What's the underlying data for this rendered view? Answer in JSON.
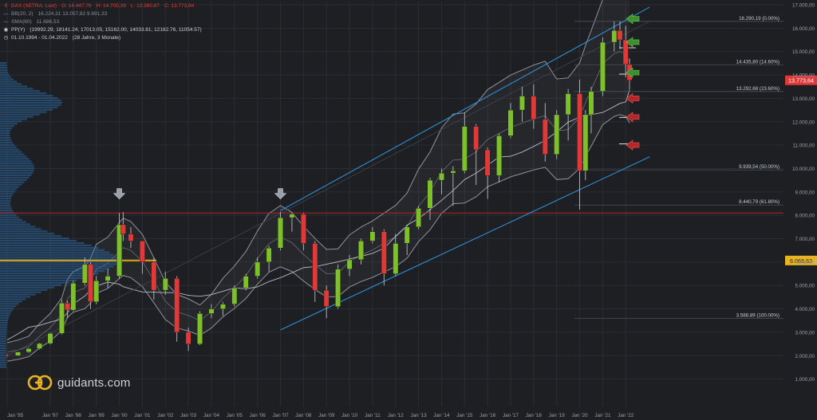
{
  "legend": {
    "instrument": {
      "name": "DAX (XETRA, Last)",
      "open": "O: 14.447,76",
      "high": "H: 14.705,39",
      "low": "L: 13.380,67",
      "close": "C: 13.773,64"
    },
    "bb": {
      "label": "BB(20, 2)",
      "values": "16.224,31  13.057,82  9.891,33"
    },
    "sma": {
      "label": "SMA(60)",
      "values": "11.686,53"
    },
    "pp": {
      "label": "PP(Y)",
      "values": "(19992.29, 18141.24, 17013.05, 15162.00, 14033.81, 12182.76, 11054.57)"
    },
    "range": {
      "label": "01.10.1994 - 01.04.2022",
      "duration": "(28 Jahre, 3 Monate)"
    }
  },
  "brand": {
    "name": "guidants.com"
  },
  "colors": {
    "background": "#1d1f23",
    "up": "#7ec02a",
    "down": "#e0393a",
    "channel": "#2f8fd6",
    "bands": "#8f939b",
    "profile": "#2c6aa8",
    "resistance": "#b3262a",
    "poc": "#d4a017",
    "last_price": "#e0393a",
    "poc_label": "#e8b422"
  },
  "icons": {
    "down_arrows": "gray-down-arrow-icon",
    "support_arrows": "red-left-arrow-icon",
    "resistance_arrows": "green-left-arrow-icon",
    "logo": "guidants-logo-icon"
  },
  "chart_data": {
    "type": "candlestick",
    "title": "DAX (XETRA, Last)",
    "interval": "monthly",
    "range": "01.10.1994 - 01.04.2022",
    "y_axis": {
      "scale": "linear",
      "min": 1000,
      "max": 17000,
      "ticks": [
        "1.000,00",
        "2.000,00",
        "3.000,00",
        "4.000,00",
        "5.000,00",
        "6.000,00",
        "7.000,00",
        "8.000,00",
        "9.000,00",
        "10.000,00",
        "11.000,00",
        "12.000,00",
        "13.000,00",
        "14.000,00",
        "15.000,00",
        "16.000,00",
        "17.000,00"
      ]
    },
    "x_axis": {
      "ticks": [
        "Jan '95",
        "Jan '97",
        "Jan '98",
        "Jan '99",
        "Jan '00",
        "Jan '01",
        "Jan '02",
        "Jan '03",
        "Jan '04",
        "Jan '05",
        "Jan '06",
        "Jan '07",
        "Jan '08",
        "Jan '09",
        "Jan '10",
        "Jan '11",
        "Jan '12",
        "Jan '13",
        "Jan '14",
        "Jan '15",
        "Jan '16",
        "Jan '17",
        "Jan '18",
        "Jan '19",
        "Jan '20",
        "Jan '21",
        "Jan '22"
      ]
    },
    "last_price": {
      "value": 13773.64,
      "label": "13.773,64"
    },
    "poc": {
      "value": 6068.63,
      "label": "6.068,63"
    },
    "resistance_line": 8100,
    "fibonacci": [
      {
        "label": "16.290,19 (0.00%)",
        "value": 16290.19
      },
      {
        "label": "14.435,80 (14.60%)",
        "value": 14435.8
      },
      {
        "label": "13.292,68 (23.60%)",
        "value": 13292.68
      },
      {
        "label": "9.939,54 (50.00%)",
        "value": 9939.54
      },
      {
        "label": "8.440,79 (61.80%)",
        "value": 8440.79
      },
      {
        "label": "3.588,89 (100.00%)",
        "value": 3588.89
      }
    ],
    "pivot_points": [
      18141.24,
      15162.0,
      14033.81,
      12182.76,
      11054.57
    ],
    "trend_channel": {
      "upper": [
        [
          "Jan '07",
          8200
        ],
        [
          "Jan '22",
          16900
        ]
      ],
      "lower": [
        [
          "Jan '07",
          3100
        ],
        [
          "Jan '22",
          10500
        ]
      ],
      "middle": [
        [
          "Jan '95",
          2000
        ],
        [
          "Jan '22",
          16300
        ]
      ]
    },
    "markers": {
      "down_arrows": [
        {
          "x": "Jan '00",
          "y": 8800
        },
        {
          "x": "Jan '07",
          "y": 8800
        }
      ],
      "green_arrows": [
        16400,
        15400,
        14100
      ],
      "red_arrows": [
        13000,
        12200,
        11000
      ]
    },
    "series": [
      {
        "x": "Jan '95",
        "o": 2000,
        "h": 2060,
        "l": 1930,
        "c": 1990
      },
      {
        "x": "Jul '95",
        "o": 2000,
        "h": 2180,
        "l": 1980,
        "c": 2150
      },
      {
        "x": "Jan '96",
        "o": 2150,
        "h": 2330,
        "l": 2120,
        "c": 2300
      },
      {
        "x": "Jul '96",
        "o": 2300,
        "h": 2550,
        "l": 2260,
        "c": 2520
      },
      {
        "x": "Jan '97",
        "o": 2520,
        "h": 2980,
        "l": 2480,
        "c": 2950
      },
      {
        "x": "Jul '97",
        "o": 2950,
        "h": 4400,
        "l": 2900,
        "c": 4250
      },
      {
        "x": "Oct '97",
        "o": 4250,
        "h": 4350,
        "l": 3600,
        "c": 3950
      },
      {
        "x": "Jan '98",
        "o": 3950,
        "h": 5200,
        "l": 3900,
        "c": 5100
      },
      {
        "x": "Jul '98",
        "o": 5100,
        "h": 6200,
        "l": 5000,
        "c": 5900
      },
      {
        "x": "Oct '98",
        "o": 5900,
        "h": 6000,
        "l": 4000,
        "c": 4300
      },
      {
        "x": "Jan '99",
        "o": 4300,
        "h": 5400,
        "l": 4200,
        "c": 5200
      },
      {
        "x": "Jul '99",
        "o": 5200,
        "h": 5700,
        "l": 4900,
        "c": 5400
      },
      {
        "x": "Jan '00",
        "o": 5400,
        "h": 8100,
        "l": 5300,
        "c": 7600
      },
      {
        "x": "Mar '00",
        "o": 7600,
        "h": 8136,
        "l": 6900,
        "c": 7200
      },
      {
        "x": "Jul '00",
        "o": 7200,
        "h": 7500,
        "l": 6600,
        "c": 6900
      },
      {
        "x": "Jan '01",
        "o": 6900,
        "h": 6900,
        "l": 5500,
        "c": 6000
      },
      {
        "x": "Jul '01",
        "o": 6000,
        "h": 6200,
        "l": 4400,
        "c": 4800
      },
      {
        "x": "Jan '02",
        "o": 4800,
        "h": 5600,
        "l": 4600,
        "c": 5300
      },
      {
        "x": "Jul '02",
        "o": 5300,
        "h": 5400,
        "l": 2600,
        "c": 3000
      },
      {
        "x": "Jan '03",
        "o": 3000,
        "h": 3200,
        "l": 2200,
        "c": 2500
      },
      {
        "x": "Jul '03",
        "o": 2500,
        "h": 3900,
        "l": 2450,
        "c": 3800
      },
      {
        "x": "Jan '04",
        "o": 3800,
        "h": 4200,
        "l": 3600,
        "c": 4000
      },
      {
        "x": "Jul '04",
        "o": 4000,
        "h": 4300,
        "l": 3700,
        "c": 4200
      },
      {
        "x": "Jan '05",
        "o": 4200,
        "h": 5000,
        "l": 4100,
        "c": 4900
      },
      {
        "x": "Jul '05",
        "o": 4900,
        "h": 5500,
        "l": 4800,
        "c": 5400
      },
      {
        "x": "Jan '06",
        "o": 5400,
        "h": 6200,
        "l": 5300,
        "c": 6000
      },
      {
        "x": "Jul '06",
        "o": 6000,
        "h": 6700,
        "l": 5600,
        "c": 6600
      },
      {
        "x": "Jan '07",
        "o": 6600,
        "h": 8150,
        "l": 6500,
        "c": 7900
      },
      {
        "x": "Jul '07",
        "o": 7900,
        "h": 8100,
        "l": 7300,
        "c": 8050
      },
      {
        "x": "Jan '08",
        "o": 8050,
        "h": 8100,
        "l": 6500,
        "c": 6800
      },
      {
        "x": "Jul '08",
        "o": 6800,
        "h": 6900,
        "l": 4300,
        "c": 4800
      },
      {
        "x": "Jan '09",
        "o": 4800,
        "h": 5000,
        "l": 3600,
        "c": 4100
      },
      {
        "x": "Jul '09",
        "o": 4100,
        "h": 5900,
        "l": 4000,
        "c": 5700
      },
      {
        "x": "Jan '10",
        "o": 5700,
        "h": 6300,
        "l": 5400,
        "c": 6100
      },
      {
        "x": "Jul '10",
        "o": 6100,
        "h": 7000,
        "l": 5900,
        "c": 6900
      },
      {
        "x": "Jan '11",
        "o": 6900,
        "h": 7500,
        "l": 6800,
        "c": 7300
      },
      {
        "x": "Jul '11",
        "o": 7300,
        "h": 7400,
        "l": 5000,
        "c": 5500
      },
      {
        "x": "Jan '12",
        "o": 5500,
        "h": 7200,
        "l": 5400,
        "c": 6800
      },
      {
        "x": "Jul '12",
        "o": 6800,
        "h": 7600,
        "l": 6300,
        "c": 7500
      },
      {
        "x": "Jan '13",
        "o": 7500,
        "h": 8400,
        "l": 7400,
        "c": 8300
      },
      {
        "x": "Jul '13",
        "o": 8300,
        "h": 9600,
        "l": 7800,
        "c": 9500
      },
      {
        "x": "Jan '14",
        "o": 9500,
        "h": 10000,
        "l": 8900,
        "c": 9800
      },
      {
        "x": "Jul '14",
        "o": 9800,
        "h": 10100,
        "l": 8400,
        "c": 9900
      },
      {
        "x": "Jan '15",
        "o": 9900,
        "h": 12400,
        "l": 9800,
        "c": 11800
      },
      {
        "x": "Jul '15",
        "o": 11800,
        "h": 11900,
        "l": 9300,
        "c": 10800
      },
      {
        "x": "Jan '16",
        "o": 10800,
        "h": 10900,
        "l": 8700,
        "c": 9700
      },
      {
        "x": "Jul '16",
        "o": 9700,
        "h": 11500,
        "l": 9400,
        "c": 11400
      },
      {
        "x": "Jan '17",
        "o": 11400,
        "h": 12800,
        "l": 11300,
        "c": 12500
      },
      {
        "x": "Jul '17",
        "o": 12500,
        "h": 13500,
        "l": 12000,
        "c": 13100
      },
      {
        "x": "Jan '18",
        "o": 13100,
        "h": 13600,
        "l": 11700,
        "c": 12100
      },
      {
        "x": "Jul '18",
        "o": 12100,
        "h": 12800,
        "l": 10300,
        "c": 10600
      },
      {
        "x": "Jan '19",
        "o": 10600,
        "h": 12500,
        "l": 10400,
        "c": 12300
      },
      {
        "x": "Jul '19",
        "o": 12300,
        "h": 13400,
        "l": 11200,
        "c": 13200
      },
      {
        "x": "Jan '20",
        "o": 13200,
        "h": 13800,
        "l": 8250,
        "c": 9900
      },
      {
        "x": "Apr '20",
        "o": 9900,
        "h": 12500,
        "l": 9500,
        "c": 12300
      },
      {
        "x": "Jul '20",
        "o": 12300,
        "h": 13500,
        "l": 11500,
        "c": 13300
      },
      {
        "x": "Jan '21",
        "o": 13300,
        "h": 15600,
        "l": 13100,
        "c": 15400
      },
      {
        "x": "Jul '21",
        "o": 15400,
        "h": 16290,
        "l": 15000,
        "c": 15900
      },
      {
        "x": "Oct '21",
        "o": 15900,
        "h": 16290,
        "l": 15100,
        "c": 15500
      },
      {
        "x": "Jan '22",
        "o": 15500,
        "h": 16100,
        "l": 13900,
        "c": 14450
      },
      {
        "x": "Mar '22",
        "o": 14447.76,
        "h": 14705.39,
        "l": 13380.67,
        "c": 13773.64
      }
    ]
  }
}
